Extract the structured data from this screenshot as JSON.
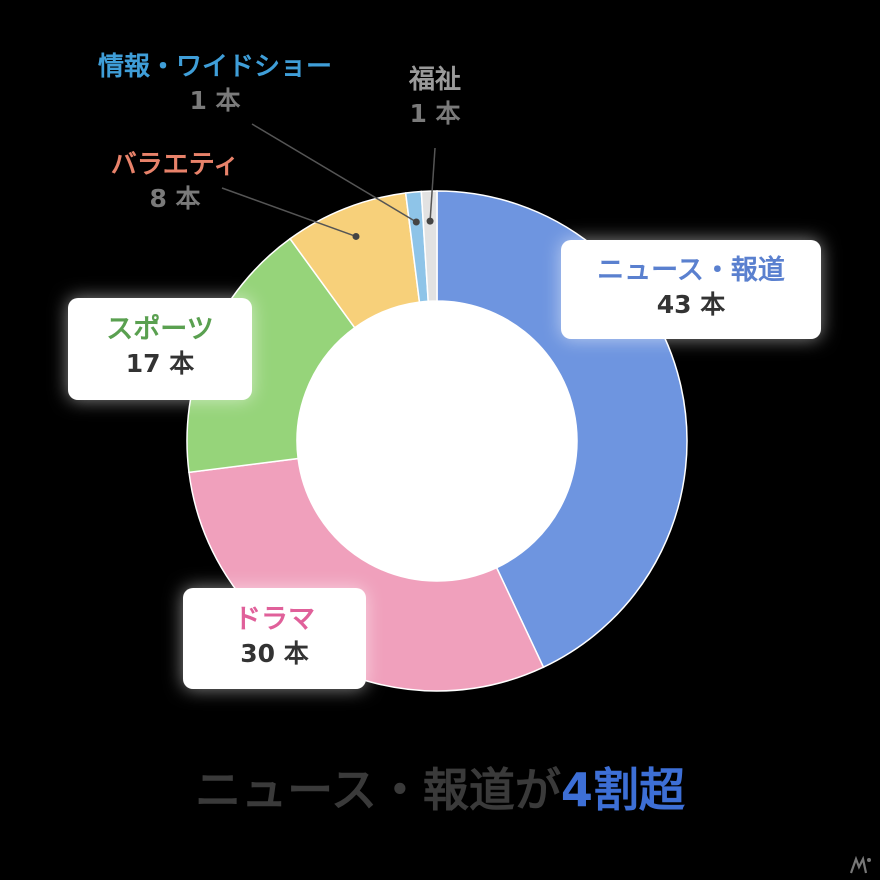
{
  "chart_data": {
    "type": "pie",
    "categories": [
      "ニュース・報道",
      "ドラマ",
      "スポーツ",
      "バラエティ",
      "情報・ワイドショー",
      "福祉"
    ],
    "values": [
      43,
      30,
      17,
      8,
      1,
      1
    ],
    "value_labels": [
      "43 本",
      "30 本",
      "17 本",
      "8 本",
      "1 本",
      "1 本"
    ],
    "colors": [
      "#6e95e0",
      "#f0a0bc",
      "#96d47a",
      "#f7d07a",
      "#8ec4e8",
      "#e2e2e2"
    ],
    "label_colors": [
      "#5a80cf",
      "#e0609a",
      "#5aa050",
      "#e8826a",
      "#3f9ed8",
      "#9a9a9a"
    ],
    "donut": true,
    "start": "12 o'clock, clockwise",
    "title": ""
  },
  "headline": {
    "text": "ニュース・報道が",
    "accent": "4割超",
    "accent_color": "#3d6fd6"
  }
}
